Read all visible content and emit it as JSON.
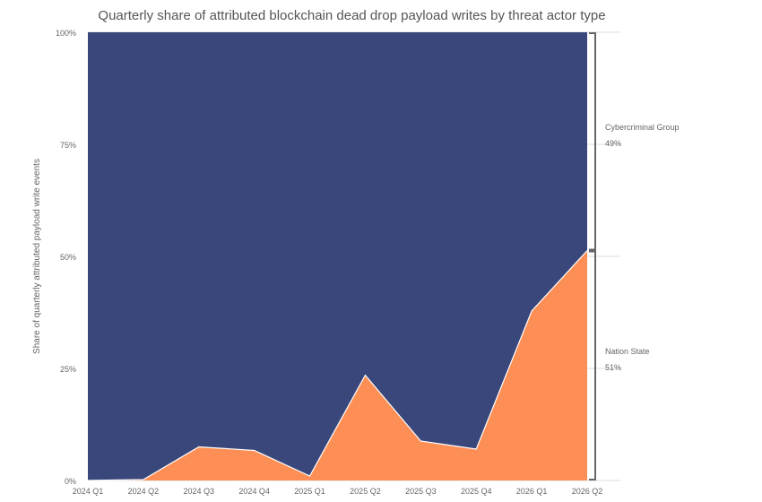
{
  "colors": {
    "cybercriminal": "#3a477b",
    "nation_state": "#fd8f56",
    "axis_text": "#666666",
    "grid": "#dddddd",
    "bracket": "#666666"
  },
  "chart_data": {
    "type": "area",
    "stacked": "percent",
    "title": "Quarterly share of attributed blockchain dead drop payload writes by threat actor type",
    "xlabel": "",
    "ylabel": "Share of quarterly attributed payload write events",
    "categories": [
      "2024 Q1",
      "2024 Q2",
      "2024 Q3",
      "2024 Q4",
      "2025 Q1",
      "2025 Q2",
      "2025 Q3",
      "2025 Q4",
      "2026 Q1",
      "2026 Q2"
    ],
    "y_ticks": [
      "0%",
      "25%",
      "50%",
      "75%",
      "100%"
    ],
    "ylim": [
      0,
      100
    ],
    "series": [
      {
        "name": "Nation State",
        "values": [
          0,
          0.2,
          7.5,
          6.7,
          1.0,
          23.5,
          8.8,
          7.0,
          37.8,
          51.3
        ]
      },
      {
        "name": "Cybercriminal Group",
        "values": [
          100,
          99.8,
          92.5,
          93.3,
          99.0,
          76.5,
          91.2,
          93.0,
          62.2,
          48.7
        ]
      }
    ],
    "end_labels": [
      {
        "series": "Cybercriminal Group",
        "name": "Cybercriminal Group",
        "value": "49%"
      },
      {
        "series": "Nation State",
        "name": "Nation State",
        "value": "51%"
      }
    ],
    "grid": true,
    "legend": "right-side end labels"
  }
}
